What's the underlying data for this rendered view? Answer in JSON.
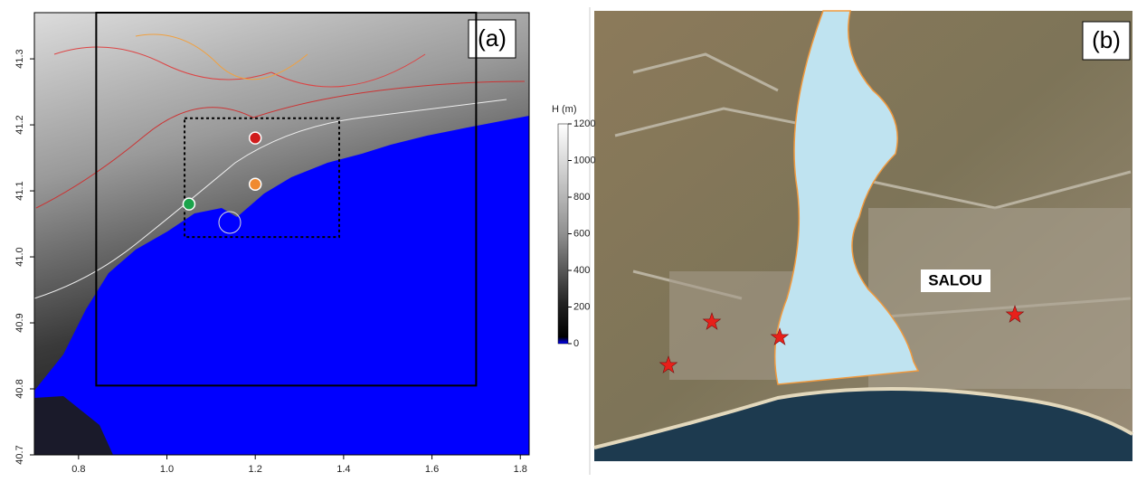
{
  "panel_a": {
    "label": "(a)",
    "xlim": [
      0.7,
      1.82
    ],
    "ylim": [
      40.7,
      41.37
    ],
    "xticks": [
      0.8,
      {
        "value": 1,
        "label": "1.0"
      },
      1.2,
      1.4,
      1.6,
      1.8
    ],
    "yticks": [
      40.7,
      40.8,
      40.9,
      {
        "value": 41,
        "label": "41.0"
      },
      41.1,
      41.2,
      41.3
    ],
    "markers": [
      {
        "color": "#1aa34a",
        "lon": 1.05,
        "lat": 41.08
      },
      {
        "color": "#d01c1c",
        "lon": 1.2,
        "lat": 41.18
      },
      {
        "color": "#f08a30",
        "lon": 1.2,
        "lat": 41.11
      }
    ],
    "domains": [
      {
        "lon": [
          0.84,
          1.7
        ],
        "lat": [
          40.805,
          41.37
        ],
        "style": "solid"
      },
      {
        "lon": [
          1.04,
          1.39
        ],
        "lat": [
          41.03,
          41.21
        ],
        "style": "dotted"
      }
    ],
    "colorbar": {
      "title": "H (m)",
      "lim": [
        0,
        1200
      ],
      "ticks": [
        0,
        200,
        400,
        600,
        800,
        1000,
        1200
      ]
    }
  },
  "panel_b": {
    "label": "(b)",
    "place": "SALOU"
  }
}
